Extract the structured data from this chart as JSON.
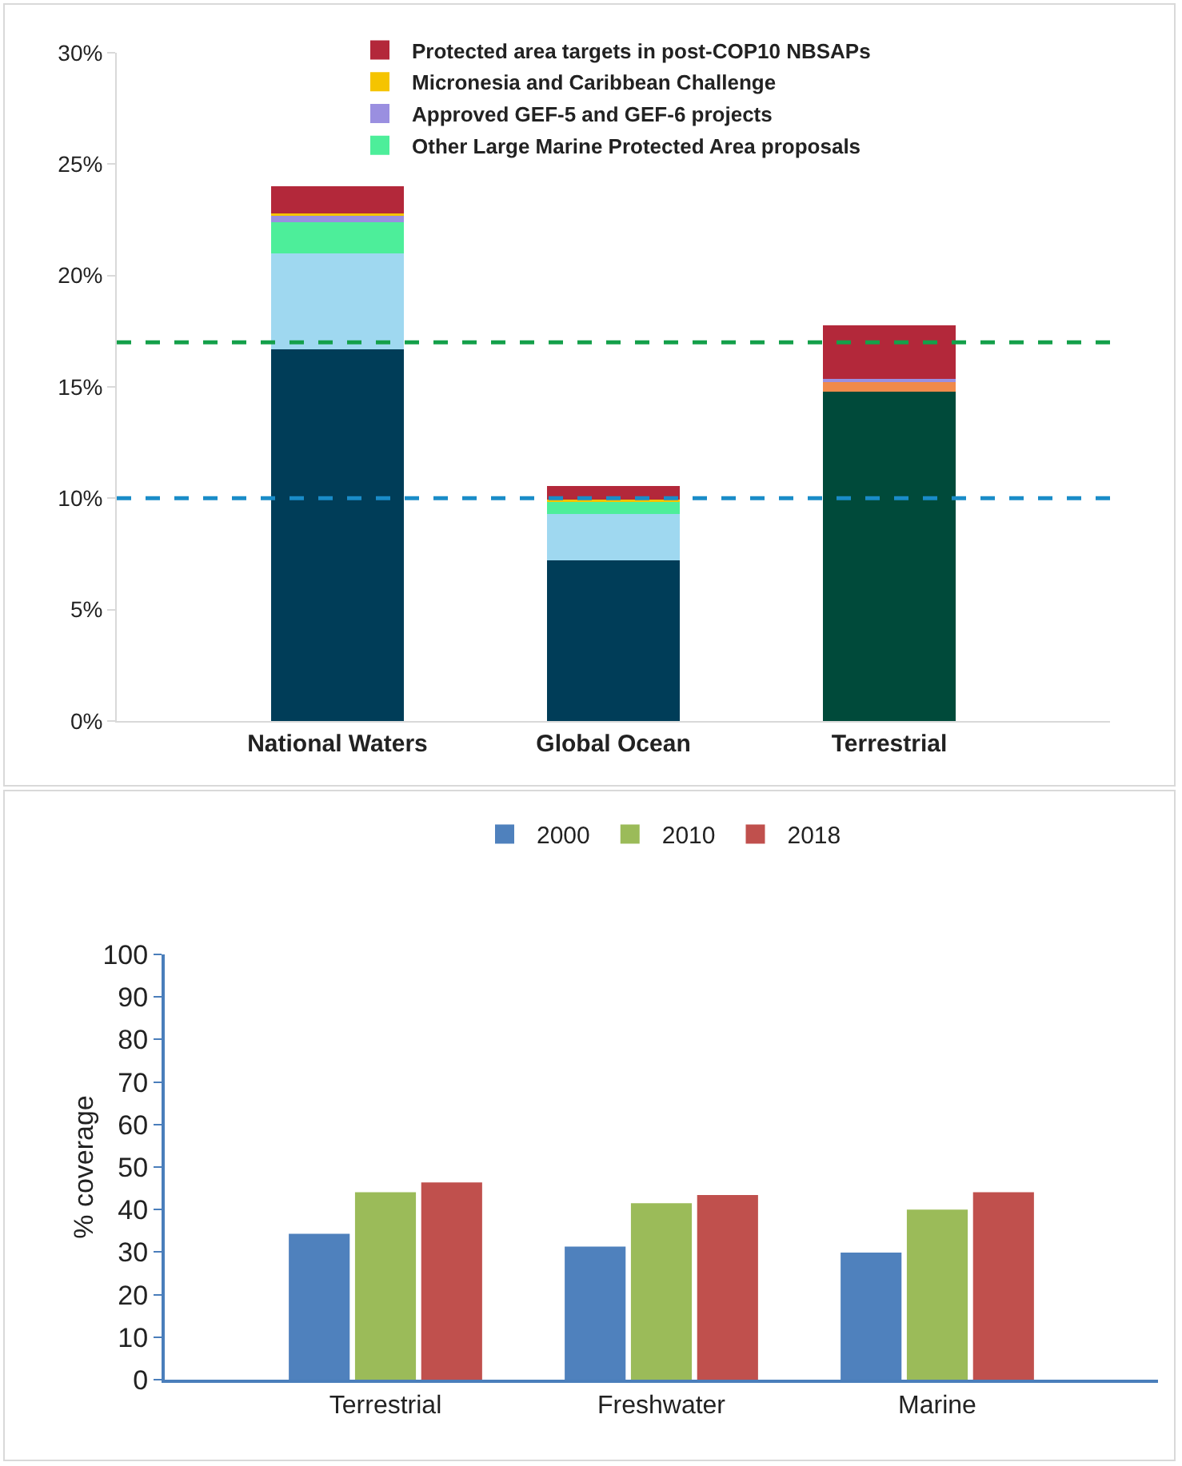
{
  "chart_data": [
    {
      "type": "bar",
      "stacked": true,
      "categories": [
        "National Waters",
        "Global Ocean",
        "Terrestrial"
      ],
      "series": [
        {
          "colors": [
            "#003d58",
            "#003d58",
            "#004a3a"
          ],
          "values": [
            16.7,
            7.2,
            14.8
          ]
        },
        {
          "colors": [
            "#9fd8f0",
            "#9fd8f0",
            "#f08a4b"
          ],
          "values": [
            4.3,
            2.1,
            0.4
          ]
        },
        {
          "name": "Other Large Marine Protected Area proposals",
          "color": "#4dee9a",
          "values": [
            1.4,
            0.6,
            null
          ]
        },
        {
          "name": "Approved GEF-5 and GEF-6 projects",
          "color": "#9a8fe0",
          "values": [
            0.3,
            null,
            0.15
          ]
        },
        {
          "name": "Micronesia and Caribbean Challenge",
          "color": "#f5c400",
          "values": [
            0.1,
            0.05,
            null
          ]
        },
        {
          "name": "Protected area targets in post-COP10 NBSAPs",
          "color": "#b3283a",
          "values": [
            1.2,
            0.6,
            2.4
          ]
        }
      ],
      "ylim": [
        0,
        30
      ],
      "yticks": [
        {
          "value": 0,
          "label": "0%"
        },
        {
          "value": 5,
          "label": "5%"
        },
        {
          "value": 10,
          "label": "10%"
        },
        {
          "value": 15,
          "label": "15%"
        },
        {
          "value": 20,
          "label": "20%"
        },
        {
          "value": 25,
          "label": "25%"
        },
        {
          "value": 30,
          "label": "30%"
        }
      ],
      "ref_lines": [
        {
          "axis": "y",
          "value": 17,
          "color": "#14a04a",
          "line_style": "dashed"
        },
        {
          "axis": "y",
          "value": 10,
          "color": "#1a8cc8",
          "line_style": "dashed"
        }
      ],
      "grid": false,
      "legend": "top"
    },
    {
      "type": "bar",
      "categories": [
        "Terrestrial",
        "Freshwater",
        "Marine"
      ],
      "ylabel": "% coverage",
      "series": [
        {
          "name": "2000",
          "color": "#4f81bd",
          "values": [
            34.3,
            31.3,
            29.9
          ]
        },
        {
          "name": "2010",
          "color": "#9bbb59",
          "values": [
            44.1,
            41.5,
            40.0
          ]
        },
        {
          "name": "2018",
          "color": "#c0504d",
          "values": [
            46.4,
            43.4,
            44.1
          ]
        }
      ],
      "ylim": [
        0,
        100
      ],
      "yticks": [
        0,
        10,
        20,
        30,
        40,
        50,
        60,
        70,
        80,
        90,
        100
      ],
      "grid": false,
      "legend": "top"
    }
  ]
}
